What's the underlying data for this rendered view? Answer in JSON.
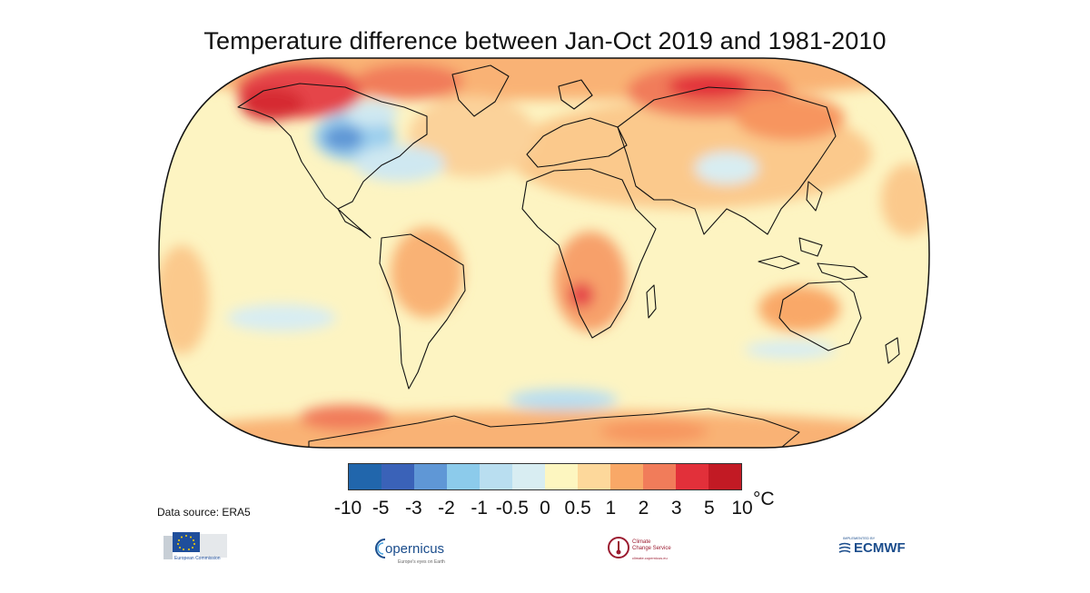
{
  "title": "Temperature difference between Jan-Oct 2019 and 1981-2010",
  "map": {
    "projection": "Robinson",
    "variable": "surface air temperature anomaly",
    "unit": "°C"
  },
  "colorbar": {
    "colors": [
      "#2166ac",
      "#3a62b8",
      "#5f97d6",
      "#8ccbeb",
      "#b9def0",
      "#d8edf2",
      "#fdf6c0",
      "#fdd89b",
      "#f9a867",
      "#f17c5a",
      "#e2303a",
      "#c21a24"
    ],
    "tick_labels": [
      "-10",
      "-5",
      "-3",
      "-2",
      "-1",
      "-0.5",
      "0",
      "0.5",
      "1",
      "2",
      "3",
      "5",
      "10"
    ],
    "unit_label": "°C"
  },
  "data_source": "Data source: ERA5",
  "logos": {
    "eu": {
      "icon": "eu-flag-icon",
      "label": "European Commission"
    },
    "copernicus": {
      "label": "opernicus",
      "sub": "Europe's eyes on Earth"
    },
    "c3s": {
      "label": "Climate",
      "label2": "Change Service",
      "sub": "climate.copernicus.eu"
    },
    "ecmwf": {
      "sub": "IMPLEMENTED BY",
      "label": "ECMWF"
    }
  }
}
